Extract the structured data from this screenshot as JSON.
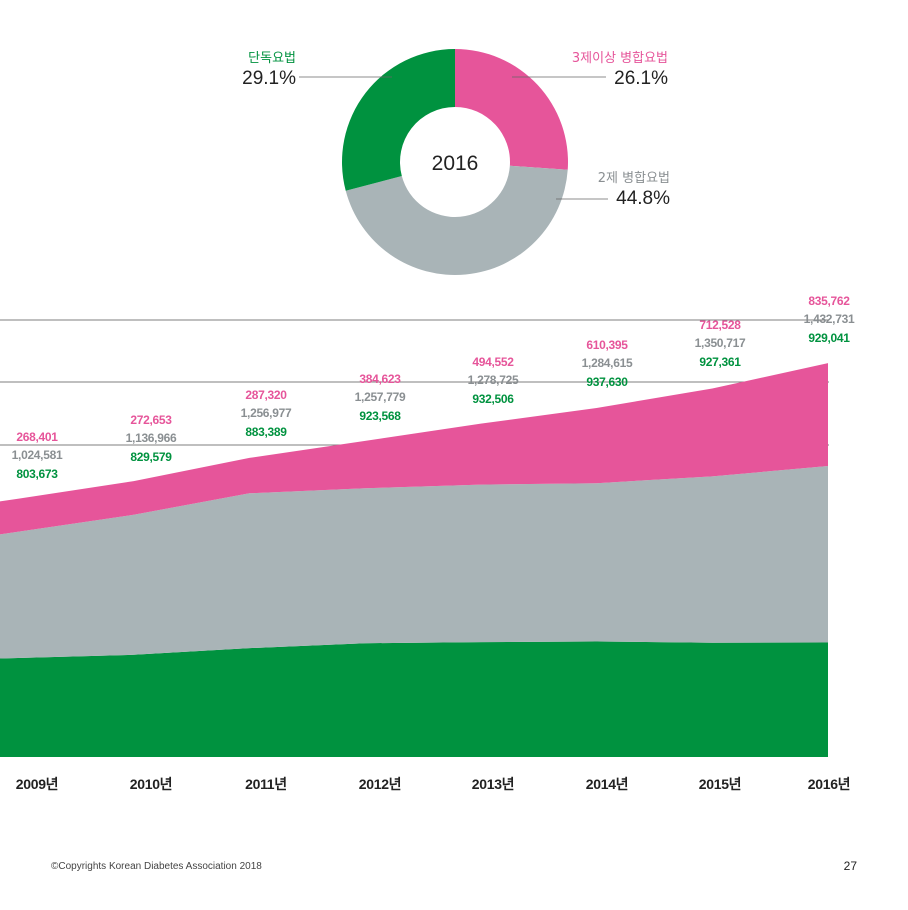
{
  "colors": {
    "mono": "#00923f",
    "dual": "#a9b4b7",
    "triple": "#e6559a",
    "grid": "#555555"
  },
  "donut": {
    "center_label": "2016",
    "segments": [
      {
        "name": "3제이상 병합요법",
        "value": 26.1,
        "label": "26.1%",
        "color": "#e6559a",
        "text_color": "#e6559a"
      },
      {
        "name": "2제 병합요법",
        "value": 44.8,
        "label": "44.8%",
        "color": "#a9b4b7",
        "text_color": "#8a8f92"
      },
      {
        "name": "단독요법",
        "value": 29.1,
        "label": "29.1%",
        "color": "#00923f",
        "text_color": "#00923f"
      }
    ]
  },
  "chart_data": {
    "type": "area",
    "stacked": true,
    "x": [
      "2009년",
      "2010년",
      "2011년",
      "2012년",
      "2013년",
      "2014년",
      "2015년",
      "2016년"
    ],
    "series": [
      {
        "name": "단독요법",
        "values": [
          803673,
          829579,
          883389,
          923568,
          932506,
          937630,
          927361,
          929041
        ]
      },
      {
        "name": "2제 병합요법",
        "values": [
          1024581,
          1136966,
          1256977,
          1257779,
          1278725,
          1284615,
          1350717,
          1432731
        ]
      },
      {
        "name": "3제이상 병합요법",
        "values": [
          268401,
          272653,
          287320,
          384623,
          494552,
          610395,
          712528,
          835762
        ]
      }
    ],
    "data_labels": {
      "triple": [
        "268,401",
        "272,653",
        "287,320",
        "384,623",
        "494,552",
        "610,395",
        "712,528",
        "835,762"
      ],
      "dual": [
        "1,024,581",
        "1,136,966",
        "1,256,977",
        "1,257,779",
        "1,278,725",
        "1,284,615",
        "1,350,717",
        "1,432,731"
      ],
      "mono": [
        "803,673",
        "829,579",
        "883,389",
        "923,568",
        "932,506",
        "937,630",
        "927,361",
        "929,041"
      ]
    },
    "xlabel": "",
    "ylabel": ""
  },
  "footer": {
    "copyright": "©Copyrights Korean Diabetes Association 2018",
    "page_number": "27"
  }
}
